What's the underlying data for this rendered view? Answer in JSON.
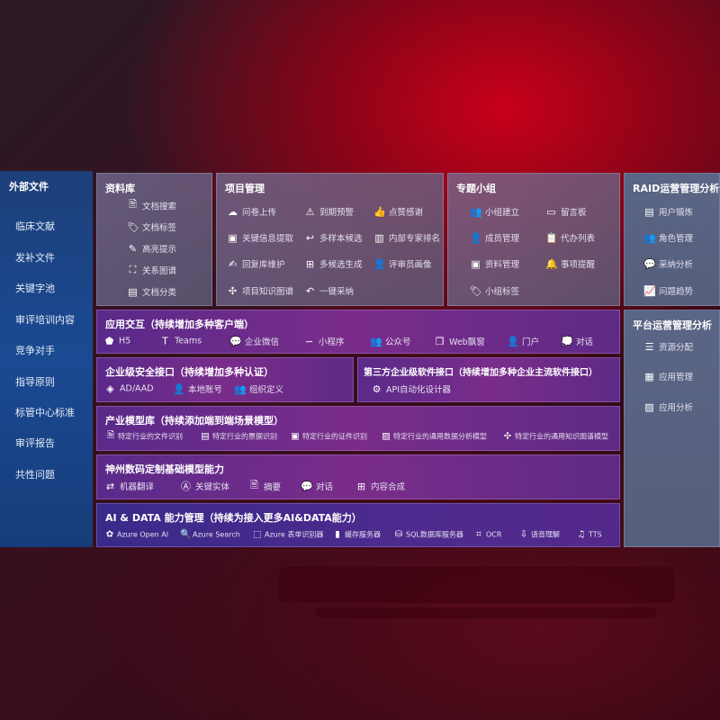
{
  "external_files": {
    "title": "外部文件",
    "items": [
      "临床文献",
      "发补文件",
      "关键字池",
      "审评培训内容",
      "竞争对手",
      "指导原则",
      "标管中心标准",
      "审评报告",
      "共性问题"
    ]
  },
  "resource_library": {
    "title": "资料库",
    "items": [
      {
        "label": "文档搜索",
        "icon": "document-search-icon",
        "glyph": "🗎"
      },
      {
        "label": "文档标签",
        "icon": "tag-icon",
        "glyph": "🏷"
      },
      {
        "label": "高亮提示",
        "icon": "pen-icon",
        "glyph": "✎"
      },
      {
        "label": "关系图谱",
        "icon": "graph-icon",
        "glyph": "⛶"
      },
      {
        "label": "文档分类",
        "icon": "document-category-icon",
        "glyph": "▤"
      }
    ]
  },
  "project_management": {
    "title": "项目管理",
    "items": [
      {
        "label": "问卷上传",
        "icon": "cloud-upload-icon",
        "glyph": "☁"
      },
      {
        "label": "到期预警",
        "icon": "alarm-icon",
        "glyph": "⚠"
      },
      {
        "label": "点赞感谢",
        "icon": "thumbs-up-icon",
        "glyph": "👍"
      },
      {
        "label": "关键信息提取",
        "icon": "window-icon",
        "glyph": "▣"
      },
      {
        "label": "多样本候选",
        "icon": "reply-all-icon",
        "glyph": "↩"
      },
      {
        "label": "内部专家排名",
        "icon": "ranking-icon",
        "glyph": "▥"
      },
      {
        "label": "回复库维护",
        "icon": "edit-icon",
        "glyph": "✍"
      },
      {
        "label": "多候选生成",
        "icon": "puzzle-icon",
        "glyph": "⊞"
      },
      {
        "label": "评审员画像",
        "icon": "user-icon",
        "glyph": "👤"
      },
      {
        "label": "项目知识图谱",
        "icon": "network-icon",
        "glyph": "✣"
      },
      {
        "label": "一键采纳",
        "icon": "reply-icon",
        "glyph": "↶"
      }
    ]
  },
  "topic_groups": {
    "title": "专题小组",
    "items": [
      {
        "label": "小组建立",
        "icon": "group-icon",
        "glyph": "👥"
      },
      {
        "label": "留言板",
        "icon": "bbs-icon",
        "glyph": "▭"
      },
      {
        "label": "成员管理",
        "icon": "member-icon",
        "glyph": "👤"
      },
      {
        "label": "代办列表",
        "icon": "clipboard-icon",
        "glyph": "📋"
      },
      {
        "label": "资料管理",
        "icon": "folder-icon",
        "glyph": "▣"
      },
      {
        "label": "事项提醒",
        "icon": "bell-icon",
        "glyph": "🔔"
      },
      {
        "label": "小组标签",
        "icon": "tag-icon",
        "glyph": "🏷"
      }
    ]
  },
  "raid_analysis": {
    "title": "RAID运营管理分析",
    "items": [
      {
        "label": "用户锻炼",
        "icon": "id-card-icon",
        "glyph": "▤"
      },
      {
        "label": "角色管理",
        "icon": "users-icon",
        "glyph": "👥"
      },
      {
        "label": "采纳分析",
        "icon": "qa-icon",
        "glyph": "💬"
      },
      {
        "label": "问题趋势",
        "icon": "trend-icon",
        "glyph": "📈"
      }
    ]
  },
  "platform_analysis": {
    "title": "平台运营管理分析",
    "items": [
      {
        "label": "资源分配",
        "icon": "checklist-icon",
        "glyph": "☰"
      },
      {
        "label": "应用管理",
        "icon": "apps-icon",
        "glyph": "▦"
      },
      {
        "label": "应用分析",
        "icon": "analysis-icon",
        "glyph": "▨"
      }
    ]
  },
  "app_interaction": {
    "title": "应用交互（持续增加多种客户端）",
    "items": [
      {
        "label": "H5",
        "icon": "html5-icon",
        "glyph": "⬟"
      },
      {
        "label": "Teams",
        "icon": "teams-icon",
        "glyph": "T"
      },
      {
        "label": "企业微信",
        "icon": "wecom-icon",
        "glyph": "💬"
      },
      {
        "label": "小程序",
        "icon": "mini-program-icon",
        "glyph": "∽"
      },
      {
        "label": "公众号",
        "icon": "official-account-icon",
        "glyph": "👥"
      },
      {
        "label": "Web飘窗",
        "icon": "web-window-icon",
        "glyph": "❐"
      },
      {
        "label": "门户",
        "icon": "portal-icon",
        "glyph": "👤"
      },
      {
        "label": "对话",
        "icon": "chat-icon",
        "glyph": "💭"
      }
    ]
  },
  "security": {
    "title": "企业级安全接口（持续增加多种认证）",
    "items": [
      {
        "label": "AD/AAD",
        "icon": "ad-icon",
        "glyph": "◈"
      },
      {
        "label": "本地账号",
        "icon": "local-account-icon",
        "glyph": "👤"
      },
      {
        "label": "组织定义",
        "icon": "organization-icon",
        "glyph": "👥"
      }
    ]
  },
  "third_party": {
    "title": "第三方企业级软件接口（持续增加多种企业主流软件接口）",
    "items": [
      {
        "label": "API自动化设计器",
        "icon": "gear-icon",
        "glyph": "⚙"
      }
    ]
  },
  "industry_models": {
    "title": "产业模型库（持续添加端到端场景模型）",
    "items": [
      {
        "label": "特定行业的文件识别",
        "icon": "file-icon",
        "glyph": "🗎"
      },
      {
        "label": "特定行业的票据识别",
        "icon": "receipt-icon",
        "glyph": "▤"
      },
      {
        "label": "特定行业的证件识别",
        "icon": "id-card-icon",
        "glyph": "▣"
      },
      {
        "label": "特定行业的通用数据分析模型",
        "icon": "image-icon",
        "glyph": "▨"
      },
      {
        "label": "特定行业的通用知识图谱模型",
        "icon": "network-icon",
        "glyph": "✣"
      }
    ]
  },
  "base_models": {
    "title": "神州数码定制基础模型能力",
    "items": [
      {
        "label": "机器翻译",
        "icon": "translate-icon",
        "glyph": "⇄"
      },
      {
        "label": "关键实体",
        "icon": "entity-icon",
        "glyph": "Ⓐ"
      },
      {
        "label": "摘要",
        "icon": "summary-icon",
        "glyph": "🗎"
      },
      {
        "label": "对话",
        "icon": "chat-icon",
        "glyph": "💬"
      },
      {
        "label": "内容合成",
        "icon": "puzzle-icon",
        "glyph": "⊞"
      }
    ]
  },
  "ai_data": {
    "title": "AI & DATA 能力管理（持续为接入更多AI&DATA能力）",
    "items": [
      {
        "label": "Azure Open AI",
        "icon": "openai-icon",
        "glyph": "✿"
      },
      {
        "label": "Azure Search",
        "icon": "search-icon",
        "glyph": "🔍"
      },
      {
        "label": "Azure 表单识别器",
        "icon": "form-recognizer-icon",
        "glyph": "⬚"
      },
      {
        "label": "缓存服务器",
        "icon": "cache-icon",
        "glyph": "▮"
      },
      {
        "label": "SQL数据库服务器",
        "icon": "database-icon",
        "glyph": "⛁"
      },
      {
        "label": "OCR",
        "icon": "ocr-icon",
        "glyph": "⌗"
      },
      {
        "label": "语音理解",
        "icon": "speech-icon",
        "glyph": "⇩"
      },
      {
        "label": "TTS",
        "icon": "tts-icon",
        "glyph": "♫"
      }
    ]
  }
}
